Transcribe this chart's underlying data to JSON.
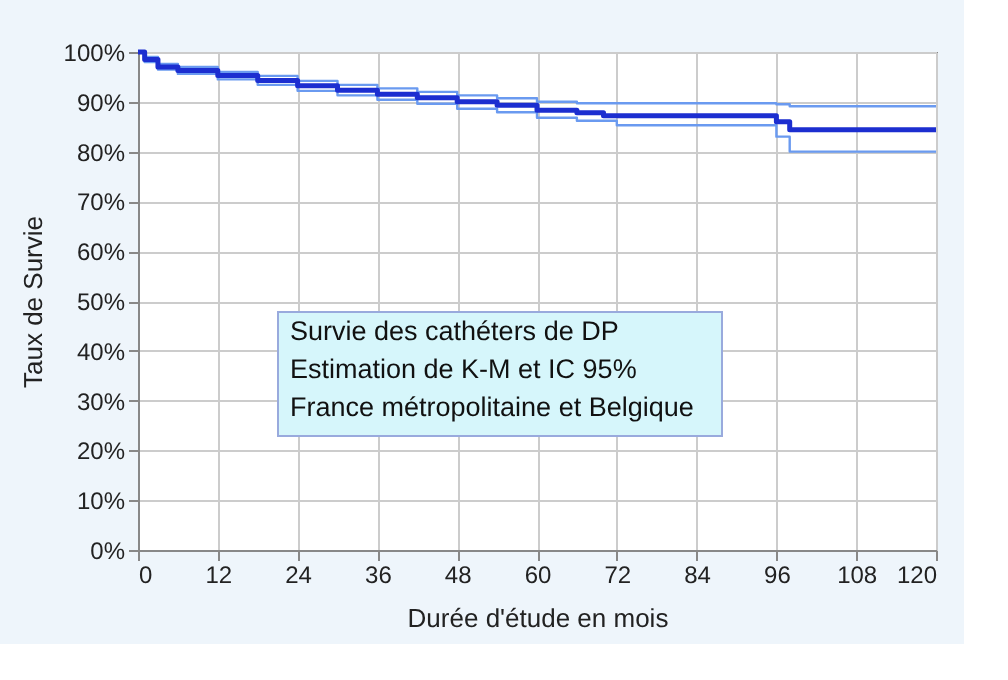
{
  "chart_data": {
    "type": "step",
    "xlabel": "Durée d'étude en mois",
    "ylabel": "Taux de Survie",
    "annotations": [
      "Survie des cathéters de DP",
      "Estimation de K-M et IC 95%",
      "France métropolitaine et Belgique"
    ],
    "xlim": [
      0,
      120
    ],
    "xticks": [
      0,
      12,
      24,
      36,
      48,
      60,
      72,
      84,
      96,
      108,
      120
    ],
    "ylim": [
      0,
      100
    ],
    "yticks": [
      {
        "value": 0,
        "label": "0%"
      },
      {
        "value": 10,
        "label": "10%"
      },
      {
        "value": 20,
        "label": "20%"
      },
      {
        "value": 30,
        "label": "30%"
      },
      {
        "value": 40,
        "label": "40%"
      },
      {
        "value": 50,
        "label": "50%"
      },
      {
        "value": 60,
        "label": "60%"
      },
      {
        "value": 70,
        "label": "70%"
      },
      {
        "value": 80,
        "label": "80%"
      },
      {
        "value": 90,
        "label": "90%"
      },
      {
        "value": 100,
        "label": "100%"
      }
    ],
    "grid": true,
    "line_style": "solid",
    "marker": "none",
    "series": [
      {
        "color": "#6a9af0",
        "x": [
          0,
          1,
          3,
          6,
          12,
          18,
          24,
          30,
          36,
          42,
          48,
          54,
          60,
          66,
          96,
          98,
          120
        ],
        "values": [
          100,
          99,
          97.6,
          97,
          96,
          95.2,
          94.2,
          93.4,
          92.7,
          92,
          91.3,
          90.7,
          90,
          89.7,
          89.5,
          89.1,
          89.1
        ]
      },
      {
        "color": "#6a9af0",
        "x": [
          0,
          1,
          3,
          6,
          12,
          18,
          24,
          30,
          36,
          42,
          48,
          54,
          60,
          66,
          72,
          96,
          98,
          120
        ],
        "values": [
          100,
          98,
          96.5,
          95.6,
          94.5,
          93.4,
          92.2,
          91.3,
          90.4,
          89.6,
          88.6,
          87.9,
          86.8,
          86.2,
          85.3,
          83,
          80,
          80
        ]
      },
      {
        "color": "#1c2ed0",
        "x": [
          0,
          1,
          3,
          6,
          12,
          18,
          24,
          30,
          36,
          42,
          48,
          54,
          60,
          66,
          70,
          96,
          98,
          120
        ],
        "values": [
          100,
          98.5,
          97,
          96.3,
          95.3,
          94.3,
          93.2,
          92.3,
          91.5,
          90.8,
          90,
          89.3,
          88.3,
          87.8,
          87.2,
          86,
          84.4,
          84.4
        ]
      }
    ]
  }
}
